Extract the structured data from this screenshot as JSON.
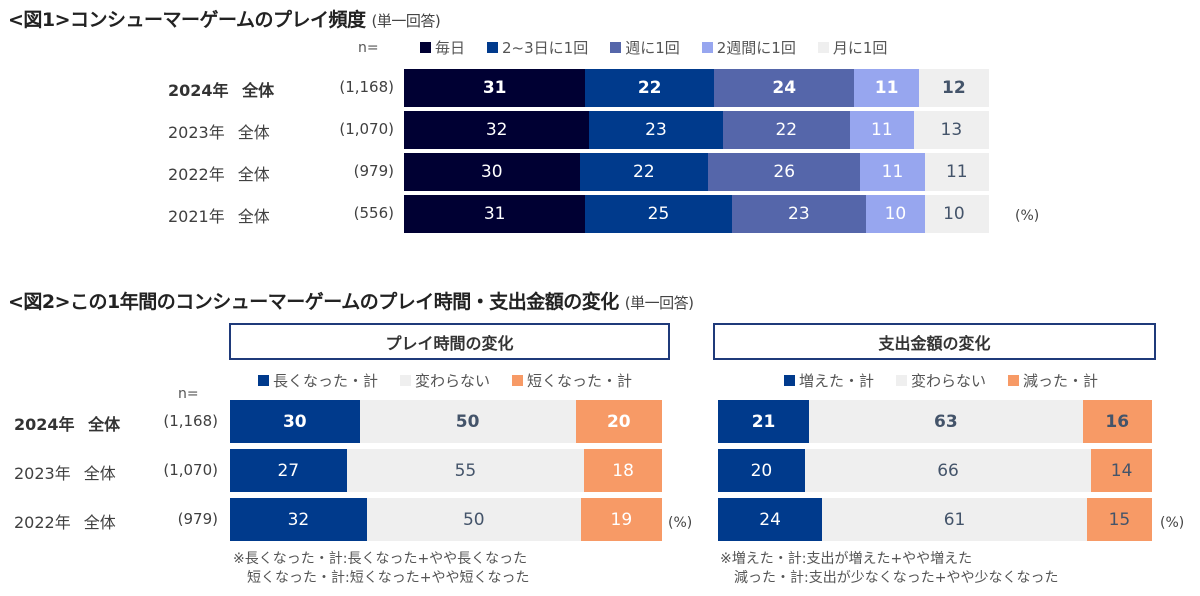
{
  "fig1": {
    "title": "<図1>コンシューマーゲームのプレイ頻度",
    "subtitle": "(単一回答)",
    "n_label": "n=",
    "unit": "(%)"
  },
  "fig2": {
    "title": "<図2>この1年間のコンシューマーゲームのプレイ時間・支出金額の変化",
    "subtitle": "(単一回答)",
    "n_label": "n=",
    "unit": "(%)",
    "panel_left_title": "プレイ時間の変化",
    "panel_right_title": "支出金額の変化",
    "note_left": [
      "※長くなった・計:長くなった+やや長くなった",
      " 短くなった・計:短くなった+やや短くなった"
    ],
    "note_right": [
      "※増えた・計:支出が増えた+やや増えた",
      " 減った・計:支出が少なくなった+やや少なくなった"
    ]
  },
  "chart_data": [
    {
      "type": "bar",
      "orientation": "horizontal-stacked-100",
      "title": "<図1>コンシューマーゲームのプレイ頻度 (単一回答)",
      "xlabel": "",
      "ylabel": "",
      "unit": "(%)",
      "xlim": [
        0,
        100
      ],
      "legend_position": "top",
      "categories": [
        "2024年 全体",
        "2023年 全体",
        "2022年 全体",
        "2021年 全体"
      ],
      "n": [
        "(1,168)",
        "(1,070)",
        "(979)",
        "(556)"
      ],
      "highlight_row": 0,
      "series": [
        {
          "name": "毎日",
          "color": "#000033",
          "text_color": "#ffffff",
          "values": [
            31,
            32,
            30,
            31
          ]
        },
        {
          "name": "2~3日に1回",
          "color": "#003a8c",
          "text_color": "#ffffff",
          "values": [
            22,
            23,
            22,
            25
          ]
        },
        {
          "name": "週に1回",
          "color": "#5566aa",
          "text_color": "#ffffff",
          "values": [
            24,
            22,
            26,
            23
          ]
        },
        {
          "name": "2週間に1回",
          "color": "#97a6ef",
          "text_color": "#ffffff",
          "values": [
            11,
            11,
            11,
            10
          ]
        },
        {
          "name": "月に1回",
          "color": "#efefef",
          "text_color": "#44546a",
          "values": [
            12,
            13,
            11,
            10
          ]
        }
      ]
    },
    {
      "type": "bar",
      "orientation": "horizontal-stacked-100",
      "title": "プレイ時間の変化",
      "xlabel": "",
      "ylabel": "",
      "unit": "(%)",
      "xlim": [
        0,
        100
      ],
      "legend_position": "top",
      "categories": [
        "2024年 全体",
        "2023年 全体",
        "2022年 全体"
      ],
      "n": [
        "(1,168)",
        "(1,070)",
        "(979)"
      ],
      "highlight_row": 0,
      "series": [
        {
          "name": "長くなった・計",
          "color": "#003a8c",
          "text_color": "#ffffff",
          "values": [
            30,
            27,
            32
          ]
        },
        {
          "name": "変わらない",
          "color": "#efefef",
          "text_color": "#44546a",
          "values": [
            50,
            55,
            50
          ]
        },
        {
          "name": "短くなった・計",
          "color": "#f79a66",
          "text_color": "#ffffff",
          "values": [
            20,
            18,
            19
          ]
        }
      ]
    },
    {
      "type": "bar",
      "orientation": "horizontal-stacked-100",
      "title": "支出金額の変化",
      "xlabel": "",
      "ylabel": "",
      "unit": "(%)",
      "xlim": [
        0,
        100
      ],
      "legend_position": "top",
      "categories": [
        "2024年 全体",
        "2023年 全体",
        "2022年 全体"
      ],
      "n": [
        "(1,168)",
        "(1,070)",
        "(979)"
      ],
      "highlight_row": 0,
      "series": [
        {
          "name": "増えた・計",
          "color": "#003a8c",
          "text_color": "#ffffff",
          "values": [
            21,
            20,
            24
          ]
        },
        {
          "name": "変わらない",
          "color": "#efefef",
          "text_color": "#44546a",
          "values": [
            63,
            66,
            61
          ]
        },
        {
          "name": "減った・計",
          "color": "#f79a66",
          "text_color": "#44546a",
          "values": [
            16,
            14,
            15
          ]
        }
      ]
    }
  ]
}
